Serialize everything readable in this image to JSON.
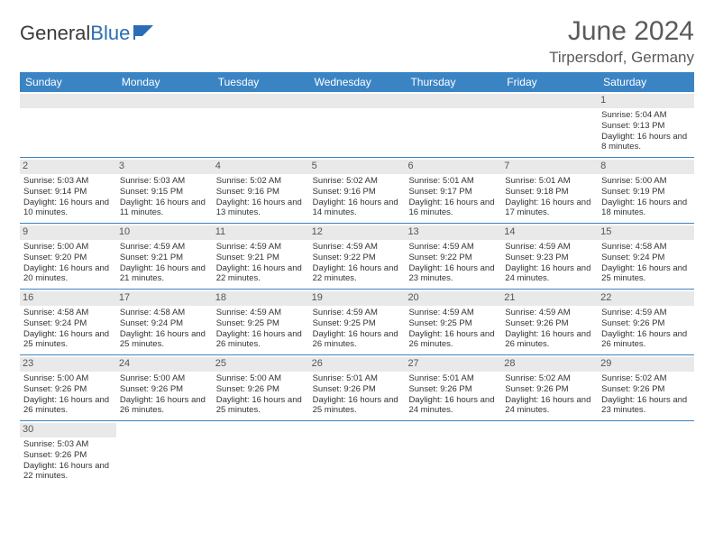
{
  "logo": {
    "text1": "General",
    "text2": "Blue"
  },
  "title": "June 2024",
  "location": "Tirpersdorf, Germany",
  "colors": {
    "header_bg": "#3b84c4",
    "header_text": "#ffffff",
    "daynum_bg": "#e9e9e9",
    "border": "#3b84c4",
    "title_color": "#5a5a5a"
  },
  "day_headers": [
    "Sunday",
    "Monday",
    "Tuesday",
    "Wednesday",
    "Thursday",
    "Friday",
    "Saturday"
  ],
  "weeks": [
    [
      {
        "n": "",
        "t": ""
      },
      {
        "n": "",
        "t": ""
      },
      {
        "n": "",
        "t": ""
      },
      {
        "n": "",
        "t": ""
      },
      {
        "n": "",
        "t": ""
      },
      {
        "n": "",
        "t": ""
      },
      {
        "n": "1",
        "t": "Sunrise: 5:04 AM\nSunset: 9:13 PM\nDaylight: 16 hours and 8 minutes."
      }
    ],
    [
      {
        "n": "2",
        "t": "Sunrise: 5:03 AM\nSunset: 9:14 PM\nDaylight: 16 hours and 10 minutes."
      },
      {
        "n": "3",
        "t": "Sunrise: 5:03 AM\nSunset: 9:15 PM\nDaylight: 16 hours and 11 minutes."
      },
      {
        "n": "4",
        "t": "Sunrise: 5:02 AM\nSunset: 9:16 PM\nDaylight: 16 hours and 13 minutes."
      },
      {
        "n": "5",
        "t": "Sunrise: 5:02 AM\nSunset: 9:16 PM\nDaylight: 16 hours and 14 minutes."
      },
      {
        "n": "6",
        "t": "Sunrise: 5:01 AM\nSunset: 9:17 PM\nDaylight: 16 hours and 16 minutes."
      },
      {
        "n": "7",
        "t": "Sunrise: 5:01 AM\nSunset: 9:18 PM\nDaylight: 16 hours and 17 minutes."
      },
      {
        "n": "8",
        "t": "Sunrise: 5:00 AM\nSunset: 9:19 PM\nDaylight: 16 hours and 18 minutes."
      }
    ],
    [
      {
        "n": "9",
        "t": "Sunrise: 5:00 AM\nSunset: 9:20 PM\nDaylight: 16 hours and 20 minutes."
      },
      {
        "n": "10",
        "t": "Sunrise: 4:59 AM\nSunset: 9:21 PM\nDaylight: 16 hours and 21 minutes."
      },
      {
        "n": "11",
        "t": "Sunrise: 4:59 AM\nSunset: 9:21 PM\nDaylight: 16 hours and 22 minutes."
      },
      {
        "n": "12",
        "t": "Sunrise: 4:59 AM\nSunset: 9:22 PM\nDaylight: 16 hours and 22 minutes."
      },
      {
        "n": "13",
        "t": "Sunrise: 4:59 AM\nSunset: 9:22 PM\nDaylight: 16 hours and 23 minutes."
      },
      {
        "n": "14",
        "t": "Sunrise: 4:59 AM\nSunset: 9:23 PM\nDaylight: 16 hours and 24 minutes."
      },
      {
        "n": "15",
        "t": "Sunrise: 4:58 AM\nSunset: 9:24 PM\nDaylight: 16 hours and 25 minutes."
      }
    ],
    [
      {
        "n": "16",
        "t": "Sunrise: 4:58 AM\nSunset: 9:24 PM\nDaylight: 16 hours and 25 minutes."
      },
      {
        "n": "17",
        "t": "Sunrise: 4:58 AM\nSunset: 9:24 PM\nDaylight: 16 hours and 25 minutes."
      },
      {
        "n": "18",
        "t": "Sunrise: 4:59 AM\nSunset: 9:25 PM\nDaylight: 16 hours and 26 minutes."
      },
      {
        "n": "19",
        "t": "Sunrise: 4:59 AM\nSunset: 9:25 PM\nDaylight: 16 hours and 26 minutes."
      },
      {
        "n": "20",
        "t": "Sunrise: 4:59 AM\nSunset: 9:25 PM\nDaylight: 16 hours and 26 minutes."
      },
      {
        "n": "21",
        "t": "Sunrise: 4:59 AM\nSunset: 9:26 PM\nDaylight: 16 hours and 26 minutes."
      },
      {
        "n": "22",
        "t": "Sunrise: 4:59 AM\nSunset: 9:26 PM\nDaylight: 16 hours and 26 minutes."
      }
    ],
    [
      {
        "n": "23",
        "t": "Sunrise: 5:00 AM\nSunset: 9:26 PM\nDaylight: 16 hours and 26 minutes."
      },
      {
        "n": "24",
        "t": "Sunrise: 5:00 AM\nSunset: 9:26 PM\nDaylight: 16 hours and 26 minutes."
      },
      {
        "n": "25",
        "t": "Sunrise: 5:00 AM\nSunset: 9:26 PM\nDaylight: 16 hours and 25 minutes."
      },
      {
        "n": "26",
        "t": "Sunrise: 5:01 AM\nSunset: 9:26 PM\nDaylight: 16 hours and 25 minutes."
      },
      {
        "n": "27",
        "t": "Sunrise: 5:01 AM\nSunset: 9:26 PM\nDaylight: 16 hours and 24 minutes."
      },
      {
        "n": "28",
        "t": "Sunrise: 5:02 AM\nSunset: 9:26 PM\nDaylight: 16 hours and 24 minutes."
      },
      {
        "n": "29",
        "t": "Sunrise: 5:02 AM\nSunset: 9:26 PM\nDaylight: 16 hours and 23 minutes."
      }
    ],
    [
      {
        "n": "30",
        "t": "Sunrise: 5:03 AM\nSunset: 9:26 PM\nDaylight: 16 hours and 22 minutes."
      },
      {
        "n": "",
        "t": ""
      },
      {
        "n": "",
        "t": ""
      },
      {
        "n": "",
        "t": ""
      },
      {
        "n": "",
        "t": ""
      },
      {
        "n": "",
        "t": ""
      },
      {
        "n": "",
        "t": ""
      }
    ]
  ]
}
